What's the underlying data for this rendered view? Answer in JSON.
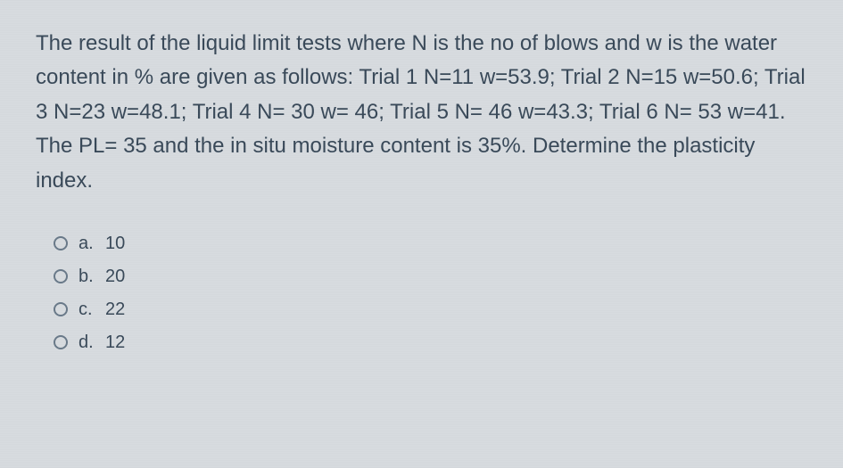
{
  "question": {
    "text": "The result of the liquid limit tests where N is the no of blows and w is the water content in % are given as follows: Trial 1 N=11 w=53.9; Trial 2 N=15 w=50.6; Trial 3 N=23 w=48.1; Trial 4 N= 30 w= 46; Trial 5 N= 46 w=43.3; Trial 6 N= 53 w=41. The PL= 35 and the in situ moisture content is 35%. Determine the plasticity index."
  },
  "options": [
    {
      "letter": "a.",
      "value": "10"
    },
    {
      "letter": "b.",
      "value": "20"
    },
    {
      "letter": "c.",
      "value": "22"
    },
    {
      "letter": "d.",
      "value": "12"
    }
  ],
  "styling": {
    "background_color": "#d8dce0",
    "text_color": "#3a4a5a",
    "question_fontsize": 24,
    "option_fontsize": 20,
    "radio_border_color": "#6a7a8a"
  }
}
